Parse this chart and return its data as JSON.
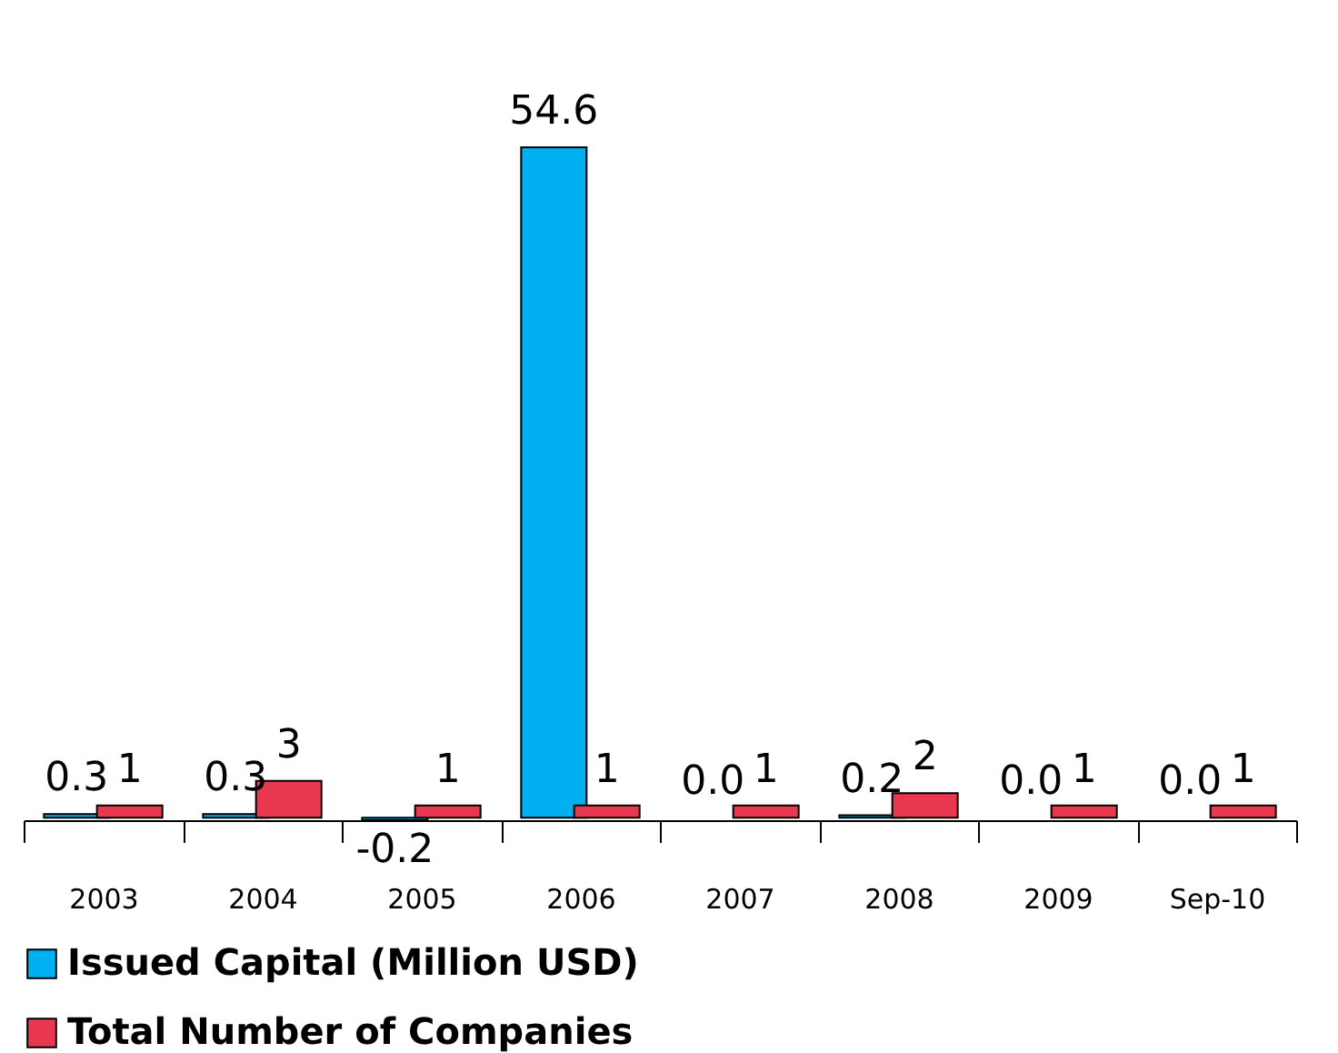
{
  "chart_data": {
    "type": "bar",
    "categories": [
      "2003",
      "2004",
      "2005",
      "2006",
      "2007",
      "2008",
      "2009",
      "Sep-10"
    ],
    "series": [
      {
        "name": "Issued Capital (Million USD)",
        "color": "#00b0f0",
        "values": [
          0.3,
          0.3,
          -0.2,
          54.6,
          0.0,
          0.2,
          0.0,
          0.0
        ],
        "value_labels": [
          "0.3",
          "0.3",
          "-0.2",
          "54.6",
          "0.0",
          "0.2",
          "0.0",
          "0.0"
        ]
      },
      {
        "name": "Total Number of Companies",
        "color": "#e8384f",
        "values": [
          1,
          3,
          1,
          1,
          1,
          2,
          1,
          1
        ],
        "value_labels": [
          "1",
          "3",
          "1",
          "1",
          "1",
          "2",
          "1",
          "1"
        ]
      }
    ],
    "legend": "bottom",
    "grid": false
  }
}
